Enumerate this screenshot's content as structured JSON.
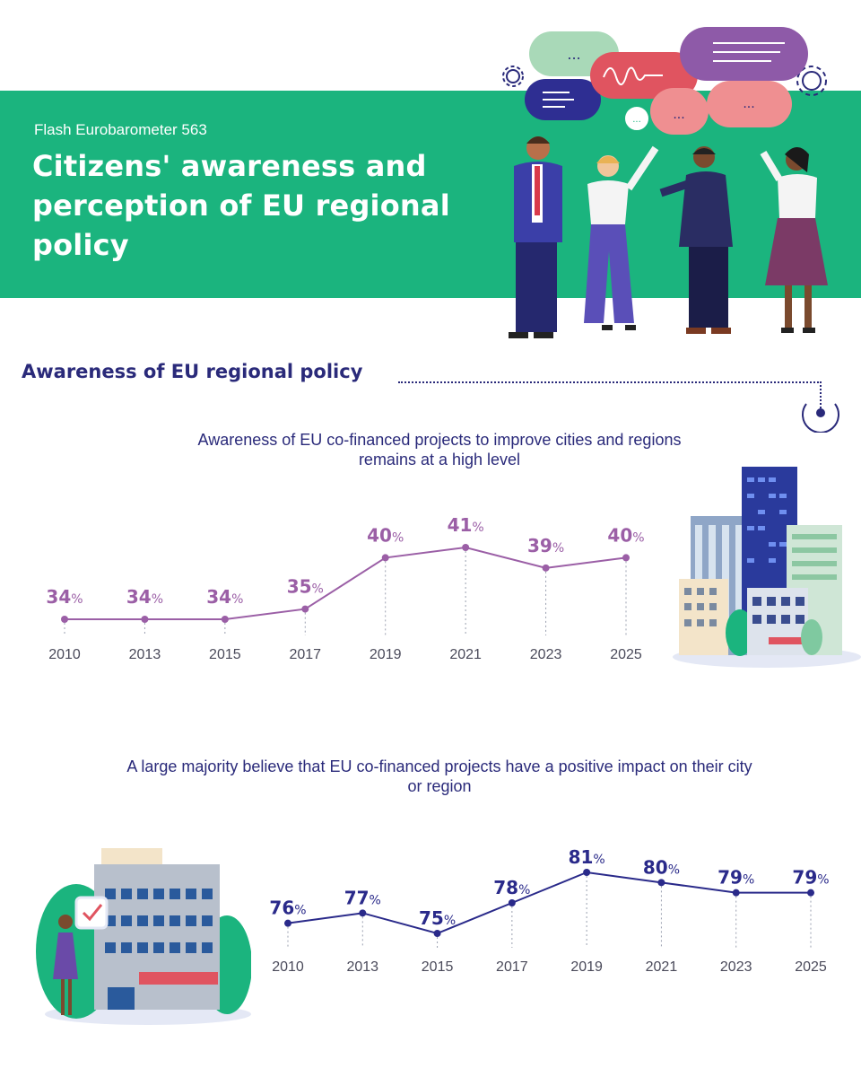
{
  "header": {
    "subtitle": "Flash Eurobarometer 563",
    "title": "Citizens' awareness and perception of EU regional policy"
  },
  "section": {
    "heading": "Awareness of EU regional policy"
  },
  "chart_data": [
    {
      "type": "line",
      "title": "Awareness of EU co-financed projects to improve cities and regions remains at a high level",
      "categories": [
        "2010",
        "2013",
        "2015",
        "2017",
        "2019",
        "2021",
        "2023",
        "2025"
      ],
      "values": [
        34,
        34,
        34,
        35,
        40,
        41,
        39,
        40
      ],
      "unit": "%",
      "color": "#9b5fa6",
      "ylim": [
        34,
        41
      ],
      "grid": false
    },
    {
      "type": "line",
      "title": "A large majority believe that EU co-financed projects have a positive impact on their city or region",
      "categories": [
        "2010",
        "2013",
        "2015",
        "2017",
        "2019",
        "2021",
        "2023",
        "2025"
      ],
      "values": [
        76,
        77,
        75,
        78,
        81,
        80,
        79,
        79
      ],
      "unit": "%",
      "color": "#2a2a8a",
      "ylim": [
        75,
        81
      ],
      "grid": false
    }
  ]
}
